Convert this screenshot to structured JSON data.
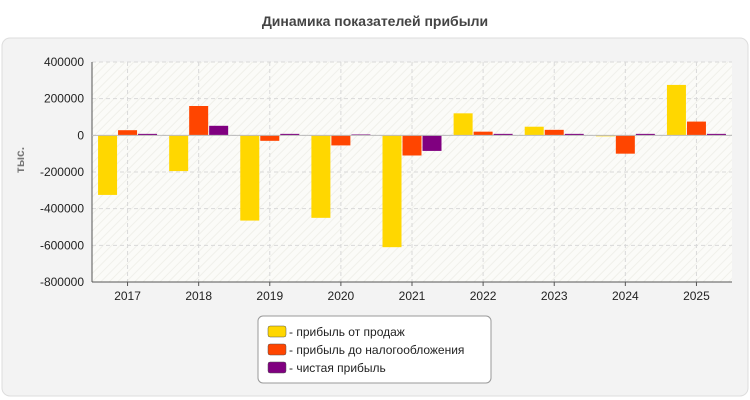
{
  "chart_data": {
    "type": "bar",
    "title": "Динамика показателей прибыли",
    "ylabel": "тыс.",
    "xlabel": "",
    "categories": [
      "2017",
      "2018",
      "2019",
      "2020",
      "2021",
      "2022",
      "2023",
      "2024",
      "2025"
    ],
    "ylim": [
      -800000,
      400000
    ],
    "yticks": [
      400000,
      200000,
      0,
      -200000,
      -400000,
      -600000,
      -800000
    ],
    "ytick_labels": [
      "400000",
      "200000",
      "0",
      "-200000",
      "-400000",
      "-600000",
      "-800000"
    ],
    "grid": true,
    "legend_position": "bottom-center",
    "series": [
      {
        "name": "- прибыль от продаж",
        "color": "#FFD700",
        "values": [
          -325000,
          -195000,
          -465000,
          -450000,
          -610000,
          120000,
          47000,
          -5000,
          275000
        ]
      },
      {
        "name": "- прибыль до налогообложения",
        "color": "#FF4500",
        "values": [
          28000,
          160000,
          -30000,
          -55000,
          -110000,
          20000,
          30000,
          -100000,
          75000
        ]
      },
      {
        "name": "- чистая прибыль",
        "color": "#800080",
        "values": [
          8000,
          52000,
          8000,
          5000,
          -85000,
          8000,
          8000,
          8000,
          8000
        ]
      }
    ]
  }
}
